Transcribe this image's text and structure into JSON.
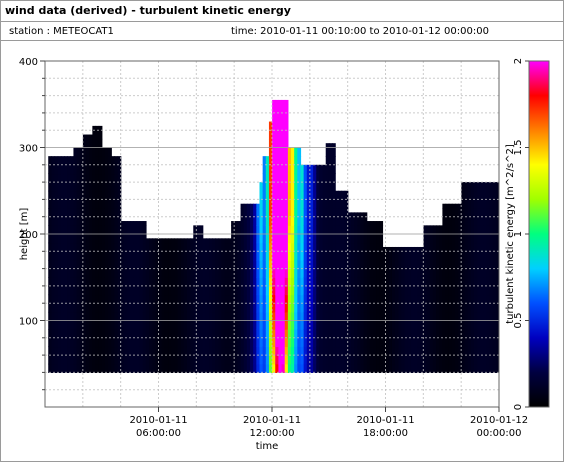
{
  "header": {
    "title": "wind data (derived) - turbulent kinetic energy",
    "station": "station : METEOCAT1",
    "time_range": "time: 2010-01-11 00:10:00 to 2010-01-12 00:00:00"
  },
  "chart_data": {
    "type": "heatmap",
    "title": "wind data (derived) - turbulent kinetic energy",
    "xlabel": "time",
    "ylabel": "height [m]",
    "colorbar_label": "turbulent kinetic energy [m^2/s^2]",
    "xlim": [
      0,
      24
    ],
    "ylim": [
      0,
      400
    ],
    "clim": [
      0,
      2
    ],
    "x_ticks": [
      {
        "value": 6,
        "line1": "2010-01-11",
        "line2": "06:00:00"
      },
      {
        "value": 12,
        "line1": "2010-01-11",
        "line2": "12:00:00"
      },
      {
        "value": 18,
        "line1": "2010-01-11",
        "line2": "18:00:00"
      },
      {
        "value": 24,
        "line1": "2010-01-12",
        "line2": "00:00:00"
      }
    ],
    "y_ticks": [
      {
        "value": 100,
        "label": "100"
      },
      {
        "value": 200,
        "label": "200"
      },
      {
        "value": 300,
        "label": "300"
      },
      {
        "value": 400,
        "label": "400"
      }
    ],
    "colorbar_ticks": [
      {
        "value": 0,
        "label": "0"
      },
      {
        "value": 0.5,
        "label": "0.5"
      },
      {
        "value": 1,
        "label": "1"
      },
      {
        "value": 1.5,
        "label": "1.5"
      },
      {
        "value": 2,
        "label": "2"
      }
    ],
    "colormap": [
      "#000000",
      "#000040",
      "#0000c0",
      "#0050ff",
      "#00d0ff",
      "#00ff80",
      "#a0ff00",
      "#ffff00",
      "#ff8000",
      "#ff0000",
      "#ff00ff"
    ],
    "grid": true,
    "data_bottom_m": 40,
    "max_height_profile": [
      {
        "t": 0.17,
        "top": 290
      },
      {
        "t": 1.5,
        "top": 300
      },
      {
        "t": 2.0,
        "top": 315
      },
      {
        "t": 2.5,
        "top": 325
      },
      {
        "t": 3.0,
        "top": 300
      },
      {
        "t": 3.5,
        "top": 290
      },
      {
        "t": 4.0,
        "top": 215
      },
      {
        "t": 5.0,
        "top": 215
      },
      {
        "t": 5.2,
        "top": 195
      },
      {
        "t": 7.5,
        "top": 195
      },
      {
        "t": 7.8,
        "top": 210
      },
      {
        "t": 8.3,
        "top": 195
      },
      {
        "t": 9.6,
        "top": 195
      },
      {
        "t": 9.7,
        "top": 215
      },
      {
        "t": 10.3,
        "top": 235
      },
      {
        "t": 11.2,
        "top": 260
      },
      {
        "t": 11.5,
        "top": 290
      },
      {
        "t": 11.7,
        "top": 330
      },
      {
        "t": 12.0,
        "top": 355
      },
      {
        "t": 12.6,
        "top": 355
      },
      {
        "t": 12.8,
        "top": 300
      },
      {
        "t": 13.3,
        "top": 300
      },
      {
        "t": 13.5,
        "top": 280
      },
      {
        "t": 14.3,
        "top": 280
      },
      {
        "t": 14.8,
        "top": 305
      },
      {
        "t": 15.3,
        "top": 250
      },
      {
        "t": 16.0,
        "top": 225
      },
      {
        "t": 17.0,
        "top": 215
      },
      {
        "t": 17.7,
        "top": 185
      },
      {
        "t": 19.5,
        "top": 185
      },
      {
        "t": 20.0,
        "top": 210
      },
      {
        "t": 21.0,
        "top": 235
      },
      {
        "t": 22.0,
        "top": 260
      },
      {
        "t": 24.0,
        "top": 268
      }
    ],
    "tke_peaks": [
      {
        "t": 11.9,
        "value": 1.3
      },
      {
        "t": 12.2,
        "value": 1.8
      },
      {
        "t": 12.4,
        "value": 1.9
      },
      {
        "t": 12.6,
        "value": 1.6
      },
      {
        "t": 13.0,
        "value": 1.0
      },
      {
        "t": 13.5,
        "value": 0.6
      },
      {
        "t": 11.3,
        "value": 0.5
      },
      {
        "t": 14.0,
        "value": 0.3
      }
    ]
  }
}
